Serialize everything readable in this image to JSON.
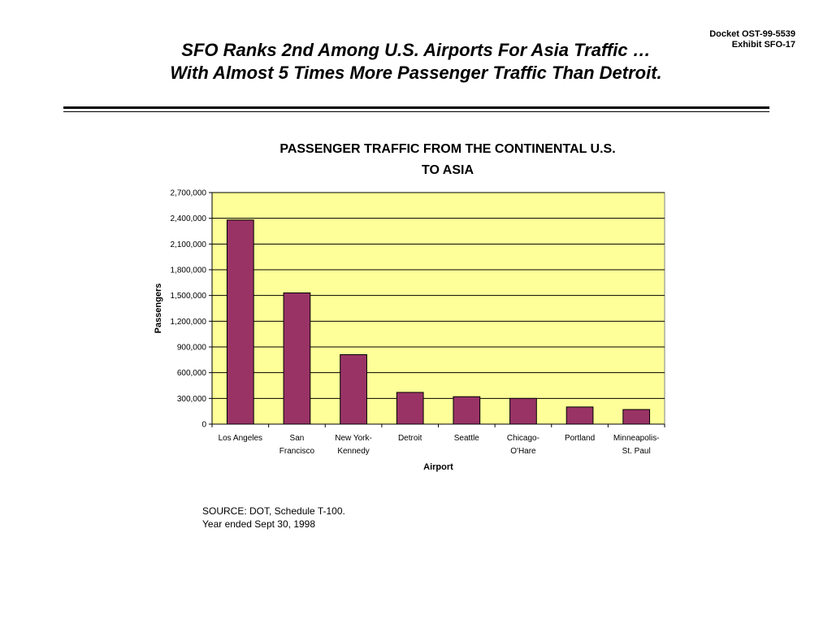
{
  "docket": {
    "line1": "Docket OST-99-5539",
    "line2": "Exhibit SFO-17"
  },
  "slide": {
    "title_line1": "SFO Ranks 2nd Among U.S. Airports For Asia Traffic …",
    "title_line2": "With Almost 5 Times More Passenger Traffic Than Detroit."
  },
  "source": {
    "line1": "SOURCE:  DOT, Schedule T-100.",
    "line2": "Year ended Sept 30, 1998"
  },
  "colors": {
    "plot_background": "#FFFF99",
    "bar": "#993366"
  },
  "chart_data": {
    "type": "bar",
    "title": [
      "PASSENGER TRAFFIC FROM THE CONTINENTAL U.S.",
      "TO ASIA"
    ],
    "xlabel": "Airport",
    "ylabel": "Passengers",
    "categories": [
      [
        "Los Angeles"
      ],
      [
        "San",
        "Francisco"
      ],
      [
        "New  York-",
        "Kennedy"
      ],
      [
        "Detroit"
      ],
      [
        "Seattle"
      ],
      [
        "Chicago-",
        "O'Hare"
      ],
      [
        "Portland"
      ],
      [
        "Minneapolis-",
        "St. Paul"
      ]
    ],
    "values": [
      2380000,
      1530000,
      810000,
      370000,
      320000,
      300000,
      200000,
      170000
    ],
    "ylim": [
      0,
      2700000
    ],
    "yticks": [
      0,
      300000,
      600000,
      900000,
      1200000,
      1500000,
      1800000,
      2100000,
      2400000,
      2700000
    ],
    "ytick_labels": [
      "0",
      "300,000",
      "600,000",
      "900,000",
      "1,200,000",
      "1,500,000",
      "1,800,000",
      "2,100,000",
      "2,400,000",
      "2,700,000"
    ],
    "grid": true,
    "legend": false
  }
}
